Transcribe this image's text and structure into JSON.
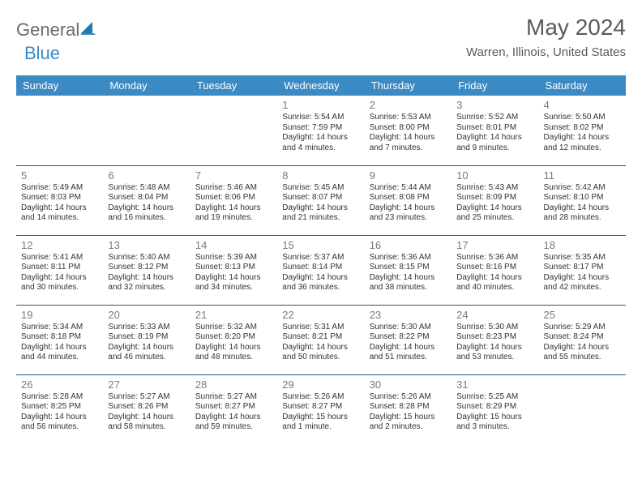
{
  "logo": {
    "part1": "General",
    "part2": "Blue"
  },
  "title": "May 2024",
  "location": "Warren, Illinois, United States",
  "colors": {
    "header_bg": "#3b8ac4",
    "header_text": "#ffffff",
    "row_border": "#1f5a8a",
    "daynum_color": "#7a7a7a",
    "body_text": "#333333",
    "logo_gray": "#6b6b6b",
    "logo_blue": "#1f77b4"
  },
  "weekdays": [
    "Sunday",
    "Monday",
    "Tuesday",
    "Wednesday",
    "Thursday",
    "Friday",
    "Saturday"
  ],
  "layout": {
    "first_weekday_index": 3,
    "num_days": 31,
    "rows": 5,
    "cols": 7
  },
  "days": [
    {
      "n": 1,
      "sunrise": "5:54 AM",
      "sunset": "7:59 PM",
      "daylight": "14 hours and 4 minutes."
    },
    {
      "n": 2,
      "sunrise": "5:53 AM",
      "sunset": "8:00 PM",
      "daylight": "14 hours and 7 minutes."
    },
    {
      "n": 3,
      "sunrise": "5:52 AM",
      "sunset": "8:01 PM",
      "daylight": "14 hours and 9 minutes."
    },
    {
      "n": 4,
      "sunrise": "5:50 AM",
      "sunset": "8:02 PM",
      "daylight": "14 hours and 12 minutes."
    },
    {
      "n": 5,
      "sunrise": "5:49 AM",
      "sunset": "8:03 PM",
      "daylight": "14 hours and 14 minutes."
    },
    {
      "n": 6,
      "sunrise": "5:48 AM",
      "sunset": "8:04 PM",
      "daylight": "14 hours and 16 minutes."
    },
    {
      "n": 7,
      "sunrise": "5:46 AM",
      "sunset": "8:06 PM",
      "daylight": "14 hours and 19 minutes."
    },
    {
      "n": 8,
      "sunrise": "5:45 AM",
      "sunset": "8:07 PM",
      "daylight": "14 hours and 21 minutes."
    },
    {
      "n": 9,
      "sunrise": "5:44 AM",
      "sunset": "8:08 PM",
      "daylight": "14 hours and 23 minutes."
    },
    {
      "n": 10,
      "sunrise": "5:43 AM",
      "sunset": "8:09 PM",
      "daylight": "14 hours and 25 minutes."
    },
    {
      "n": 11,
      "sunrise": "5:42 AM",
      "sunset": "8:10 PM",
      "daylight": "14 hours and 28 minutes."
    },
    {
      "n": 12,
      "sunrise": "5:41 AM",
      "sunset": "8:11 PM",
      "daylight": "14 hours and 30 minutes."
    },
    {
      "n": 13,
      "sunrise": "5:40 AM",
      "sunset": "8:12 PM",
      "daylight": "14 hours and 32 minutes."
    },
    {
      "n": 14,
      "sunrise": "5:39 AM",
      "sunset": "8:13 PM",
      "daylight": "14 hours and 34 minutes."
    },
    {
      "n": 15,
      "sunrise": "5:37 AM",
      "sunset": "8:14 PM",
      "daylight": "14 hours and 36 minutes."
    },
    {
      "n": 16,
      "sunrise": "5:36 AM",
      "sunset": "8:15 PM",
      "daylight": "14 hours and 38 minutes."
    },
    {
      "n": 17,
      "sunrise": "5:36 AM",
      "sunset": "8:16 PM",
      "daylight": "14 hours and 40 minutes."
    },
    {
      "n": 18,
      "sunrise": "5:35 AM",
      "sunset": "8:17 PM",
      "daylight": "14 hours and 42 minutes."
    },
    {
      "n": 19,
      "sunrise": "5:34 AM",
      "sunset": "8:18 PM",
      "daylight": "14 hours and 44 minutes."
    },
    {
      "n": 20,
      "sunrise": "5:33 AM",
      "sunset": "8:19 PM",
      "daylight": "14 hours and 46 minutes."
    },
    {
      "n": 21,
      "sunrise": "5:32 AM",
      "sunset": "8:20 PM",
      "daylight": "14 hours and 48 minutes."
    },
    {
      "n": 22,
      "sunrise": "5:31 AM",
      "sunset": "8:21 PM",
      "daylight": "14 hours and 50 minutes."
    },
    {
      "n": 23,
      "sunrise": "5:30 AM",
      "sunset": "8:22 PM",
      "daylight": "14 hours and 51 minutes."
    },
    {
      "n": 24,
      "sunrise": "5:30 AM",
      "sunset": "8:23 PM",
      "daylight": "14 hours and 53 minutes."
    },
    {
      "n": 25,
      "sunrise": "5:29 AM",
      "sunset": "8:24 PM",
      "daylight": "14 hours and 55 minutes."
    },
    {
      "n": 26,
      "sunrise": "5:28 AM",
      "sunset": "8:25 PM",
      "daylight": "14 hours and 56 minutes."
    },
    {
      "n": 27,
      "sunrise": "5:27 AM",
      "sunset": "8:26 PM",
      "daylight": "14 hours and 58 minutes."
    },
    {
      "n": 28,
      "sunrise": "5:27 AM",
      "sunset": "8:27 PM",
      "daylight": "14 hours and 59 minutes."
    },
    {
      "n": 29,
      "sunrise": "5:26 AM",
      "sunset": "8:27 PM",
      "daylight": "15 hours and 1 minute."
    },
    {
      "n": 30,
      "sunrise": "5:26 AM",
      "sunset": "8:28 PM",
      "daylight": "15 hours and 2 minutes."
    },
    {
      "n": 31,
      "sunrise": "5:25 AM",
      "sunset": "8:29 PM",
      "daylight": "15 hours and 3 minutes."
    }
  ],
  "labels": {
    "sunrise": "Sunrise:",
    "sunset": "Sunset:",
    "daylight": "Daylight:"
  }
}
